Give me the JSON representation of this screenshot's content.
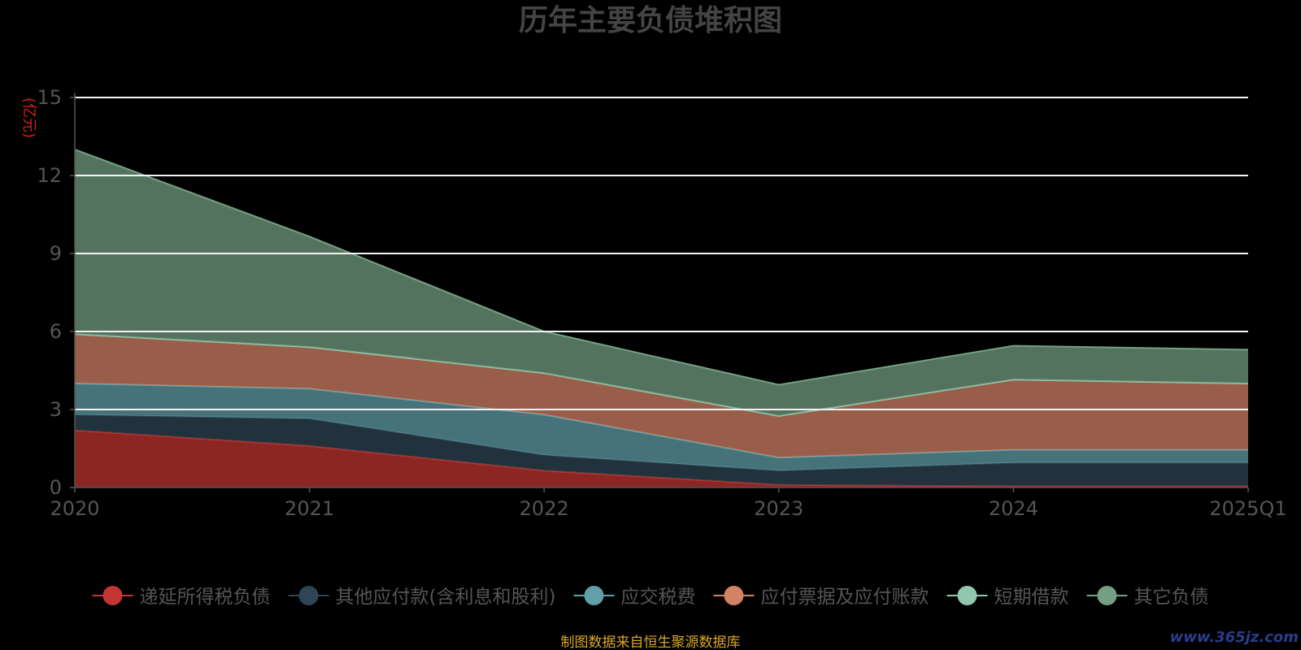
{
  "chart_data": {
    "type": "area",
    "stacked": true,
    "title": "历年主要负债堆积图",
    "unit_label": "(亿元)",
    "categories": [
      "2020",
      "2021",
      "2022",
      "2023",
      "2024",
      "2025Q1"
    ],
    "y_ticks": [
      "0",
      "3",
      "6",
      "9",
      "12",
      "15"
    ],
    "ylim": [
      0,
      15
    ],
    "grid": true,
    "legend_position": "bottom",
    "series": [
      {
        "name": "递延所得税负债",
        "color": "#c23531",
        "values": [
          2.2,
          1.6,
          0.65,
          0.1,
          0.05,
          0.05
        ]
      },
      {
        "name": "其他应付款(含利息和股利)",
        "color": "#2f4554",
        "values": [
          0.6,
          1.05,
          0.6,
          0.55,
          0.9,
          0.9
        ]
      },
      {
        "name": "应交税费",
        "color": "#61a0a8",
        "values": [
          1.2,
          1.15,
          1.55,
          0.5,
          0.5,
          0.5
        ]
      },
      {
        "name": "应付票据及应付账款",
        "color": "#d48265",
        "values": [
          1.9,
          1.6,
          1.6,
          1.6,
          2.7,
          2.55
        ]
      },
      {
        "name": "短期借款",
        "color": "#91c7ae",
        "values": [
          0,
          0,
          0,
          0,
          0,
          0
        ]
      },
      {
        "name": "其它负债",
        "color": "#749f83",
        "values": [
          7.1,
          4.25,
          1.6,
          1.2,
          1.3,
          1.3
        ]
      }
    ]
  },
  "footer": {
    "source_text": "制图数据来自恒生聚源数据库",
    "watermark": "www.365jz.com"
  }
}
